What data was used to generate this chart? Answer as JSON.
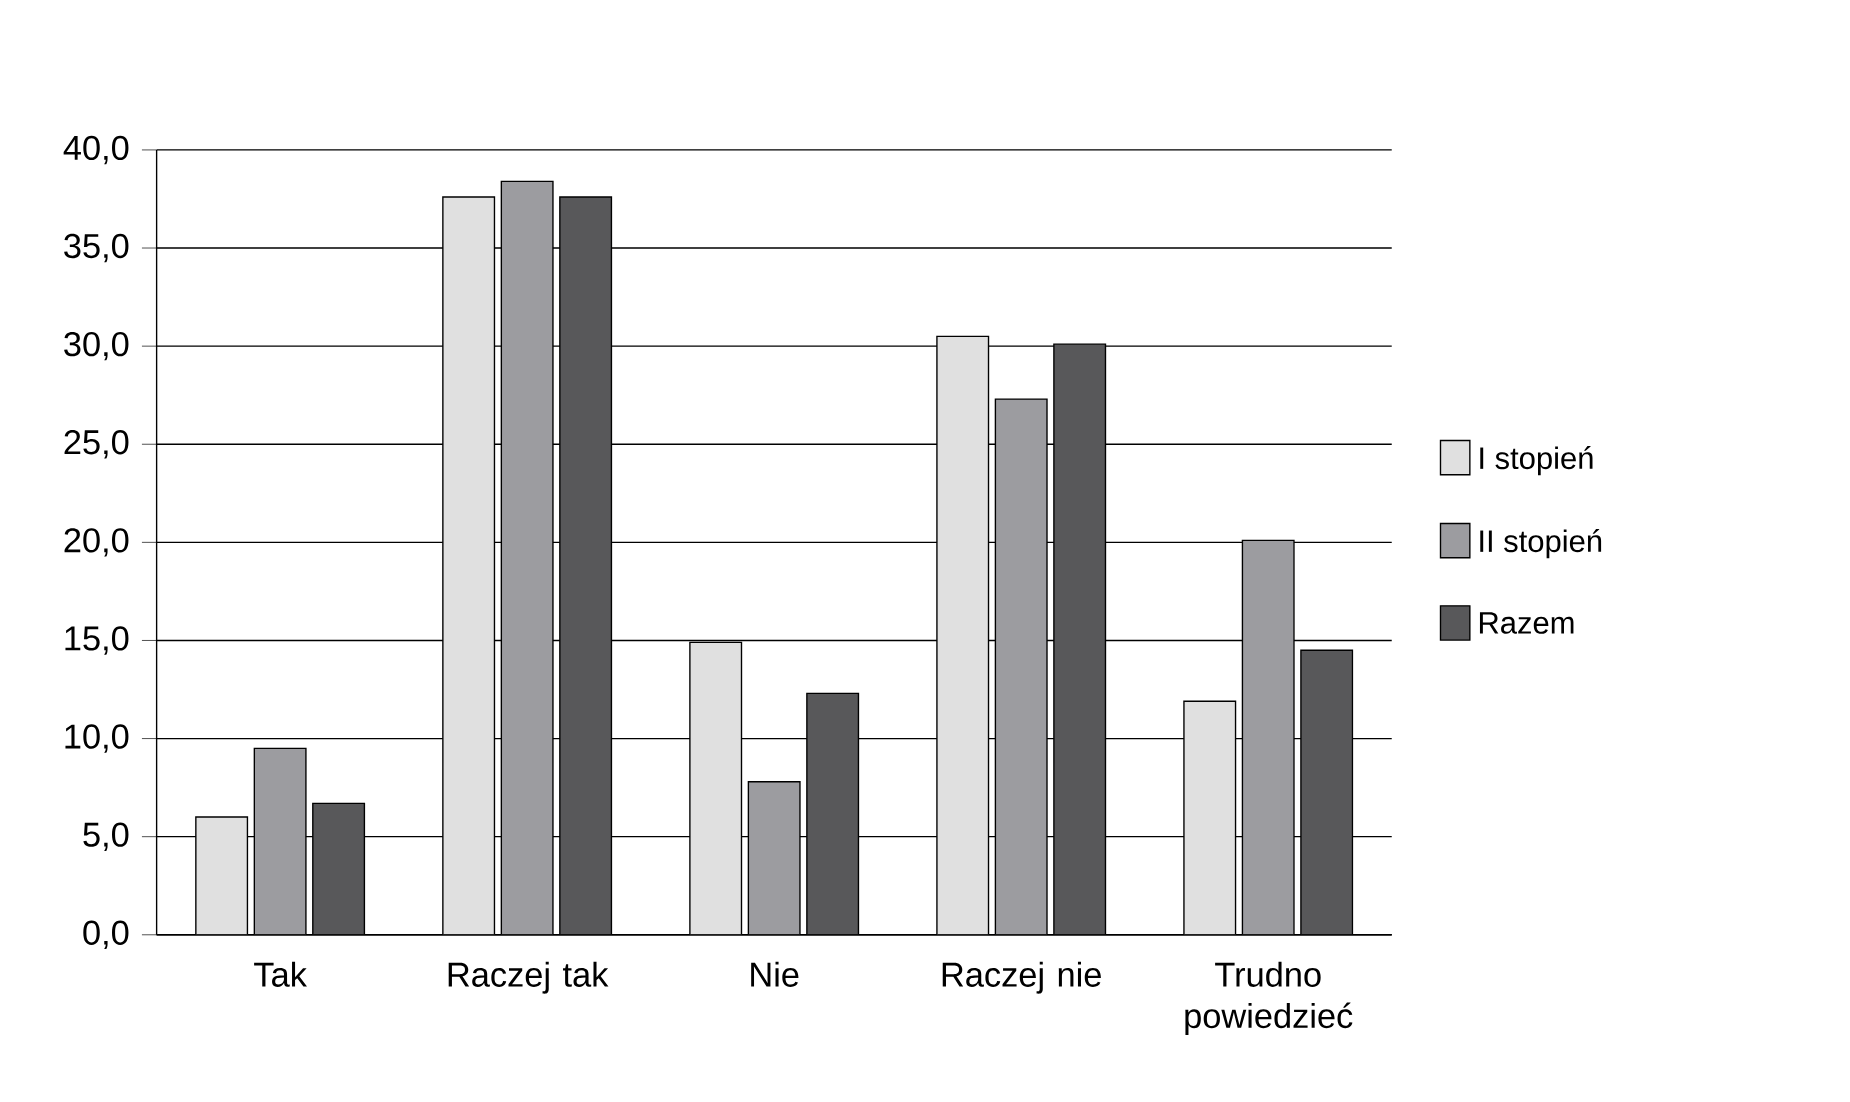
{
  "chart_data": {
    "type": "bar",
    "categories": [
      "Tak",
      "Raczej tak",
      "Nie",
      "Raczej nie",
      "Trudno powiedzieć"
    ],
    "series": [
      {
        "name": "I stopień",
        "color": "#e0e0e0",
        "values": [
          6.0,
          37.6,
          14.9,
          30.5,
          11.9
        ]
      },
      {
        "name": "II stopień",
        "color": "#9c9ca0",
        "values": [
          9.5,
          38.4,
          7.8,
          27.3,
          20.1
        ]
      },
      {
        "name": "Razem",
        "color": "#58585a",
        "values": [
          6.7,
          37.6,
          12.3,
          30.1,
          14.5
        ]
      }
    ],
    "ylim": [
      0,
      40
    ],
    "yticks": [
      {
        "value": 0,
        "label": "0,0"
      },
      {
        "value": 5,
        "label": "5,0"
      },
      {
        "value": 10,
        "label": "10,0"
      },
      {
        "value": 15,
        "label": "15,0"
      },
      {
        "value": 20,
        "label": "20,0"
      },
      {
        "value": 25,
        "label": "25,0"
      },
      {
        "value": 30,
        "label": "30,0"
      },
      {
        "value": 35,
        "label": "35,0"
      },
      {
        "value": 40,
        "label": "40,0"
      }
    ],
    "grid": "y",
    "legend": "right"
  }
}
